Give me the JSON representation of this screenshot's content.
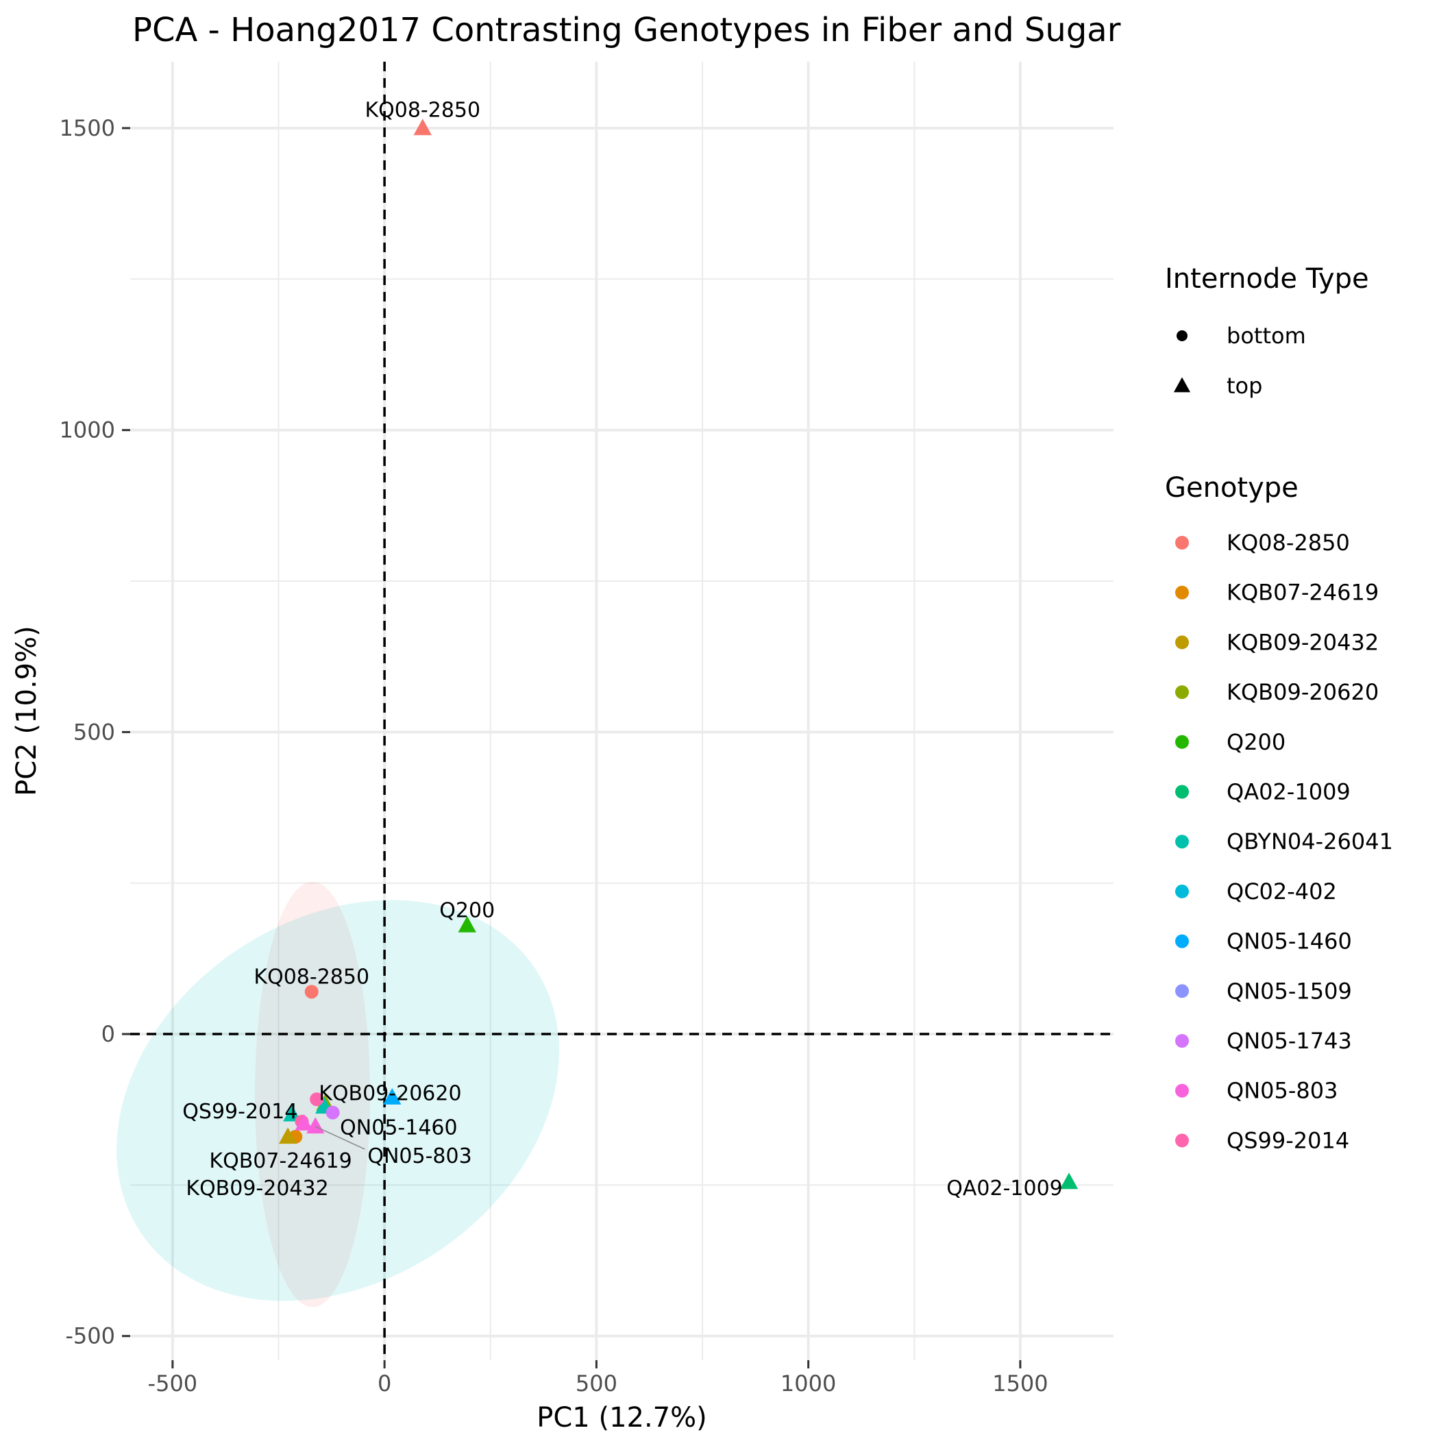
{
  "chart_data": {
    "type": "scatter",
    "title": "PCA - Hoang2017 Contrasting Genotypes in Fiber and Sugar",
    "xlabel": "PC1 (12.7%)",
    "ylabel": "PC2 (10.9%)",
    "xlim": [
      -600,
      1720
    ],
    "ylim": [
      -540,
      1610
    ],
    "x_ticks": [
      -500,
      0,
      500,
      1000,
      1500
    ],
    "y_ticks": [
      -500,
      0,
      500,
      1000,
      1500
    ],
    "x_tick_labels": [
      "-500",
      "0",
      "500",
      "1000",
      "1500"
    ],
    "y_tick_labels": [
      "-500",
      "0",
      "500",
      "1000",
      "1500"
    ],
    "grid": true,
    "reference_lines": {
      "x": 0,
      "y": 0,
      "style": "dashed"
    },
    "legend_placement": "right",
    "shape_legend": {
      "title": "Internode Type",
      "items": [
        {
          "label": "bottom",
          "shape": "circle"
        },
        {
          "label": "top",
          "shape": "triangle"
        }
      ]
    },
    "color_legend": {
      "title": "Genotype",
      "items": [
        {
          "label": "KQ08-2850",
          "color": "#F8766D"
        },
        {
          "label": "KQB07-24619",
          "color": "#E18A00"
        },
        {
          "label": "KQB09-20432",
          "color": "#BE9C00"
        },
        {
          "label": "KQB09-20620",
          "color": "#8CAB00"
        },
        {
          "label": "Q200",
          "color": "#24B700"
        },
        {
          "label": "QA02-1009",
          "color": "#00BE70"
        },
        {
          "label": "QBYN04-26041",
          "color": "#00C1AB"
        },
        {
          "label": "QC02-402",
          "color": "#00BBDA"
        },
        {
          "label": "QN05-1460",
          "color": "#00ACFC"
        },
        {
          "label": "QN05-1509",
          "color": "#8B93FF"
        },
        {
          "label": "QN05-1743",
          "color": "#D575FE"
        },
        {
          "label": "QN05-803",
          "color": "#F962DD"
        },
        {
          "label": "QS99-2014",
          "color": "#FF65AC"
        }
      ]
    },
    "ellipses": [
      {
        "group": "bottom",
        "color": "#F8766D",
        "center": [
          -170,
          -100
        ],
        "semi_axes": [
          136,
          352
        ],
        "angle": 0
      },
      {
        "group": "top",
        "color": "#00BFC4",
        "center": [
          -110,
          -110
        ],
        "semi_axes": [
          560,
          300
        ],
        "angle": 34
      }
    ],
    "points": [
      {
        "genotype": "KQ08-2850",
        "type": "top",
        "x": 90,
        "y": 1500,
        "color": "#F8766D"
      },
      {
        "genotype": "KQ08-2850",
        "type": "bottom",
        "x": -172,
        "y": 70,
        "color": "#F8766D"
      },
      {
        "genotype": "Q200",
        "type": "top",
        "x": 195,
        "y": 180,
        "color": "#24B700"
      },
      {
        "genotype": "QA02-1009",
        "type": "top",
        "x": 1615,
        "y": -245,
        "color": "#00BE70"
      },
      {
        "genotype": "QN05-1460",
        "type": "top",
        "x": 18,
        "y": -105,
        "color": "#00ACFC"
      },
      {
        "genotype": "KQB09-20620",
        "type": "top",
        "x": -140,
        "y": -115,
        "color": "#8CAB00"
      },
      {
        "genotype": "QBYN04-26041",
        "type": "top",
        "x": -142,
        "y": -120,
        "color": "#00C1AB"
      },
      {
        "genotype": "QS99-2014",
        "type": "bottom",
        "x": -160,
        "y": -108,
        "color": "#FF65AC"
      },
      {
        "genotype": "QN05-1743",
        "type": "bottom",
        "x": -122,
        "y": -130,
        "color": "#D575FE"
      },
      {
        "genotype": "QBYN04-26041",
        "type": "top",
        "x": -218,
        "y": -133,
        "color": "#00C1AB"
      },
      {
        "genotype": "KQB07-24619",
        "type": "bottom",
        "x": -210,
        "y": -170,
        "color": "#E18A00"
      },
      {
        "genotype": "KQB09-20432",
        "type": "top",
        "x": -228,
        "y": -170,
        "color": "#BE9C00"
      },
      {
        "genotype": "QS99-2014",
        "type": "bottom",
        "x": -195,
        "y": -145,
        "color": "#FF65AC"
      },
      {
        "genotype": "QN05-803",
        "type": "top",
        "x": -190,
        "y": -148,
        "color": "#F962DD"
      },
      {
        "genotype": "QN05-803",
        "type": "top",
        "x": -163,
        "y": -153,
        "color": "#F962DD"
      }
    ],
    "annotations": [
      {
        "text": "KQ08-2850",
        "x": 90,
        "y": 1530,
        "anchor": "middle"
      },
      {
        "text": "Q200",
        "x": 195,
        "y": 205,
        "anchor": "middle"
      },
      {
        "text": "KQ08-2850",
        "x": -172,
        "y": 95,
        "anchor": "middle"
      },
      {
        "text": "KQB09-20620",
        "x": -155,
        "y": -98,
        "anchor": "start"
      },
      {
        "text": "QS99-2014",
        "x": -205,
        "y": -128,
        "anchor": "end"
      },
      {
        "text": "QN05-1460",
        "x": -105,
        "y": -155,
        "anchor": "start"
      },
      {
        "text": "QN05-803",
        "x": -40,
        "y": -202,
        "anchor": "start",
        "line_to": [
          -163,
          -153
        ]
      },
      {
        "text": "KQB07-24619",
        "x": -245,
        "y": -210,
        "anchor": "middle"
      },
      {
        "text": "KQB09-20432",
        "x": -300,
        "y": -255,
        "anchor": "middle"
      },
      {
        "text": "QA02-1009",
        "x": 1600,
        "y": -255,
        "anchor": "end"
      }
    ]
  }
}
